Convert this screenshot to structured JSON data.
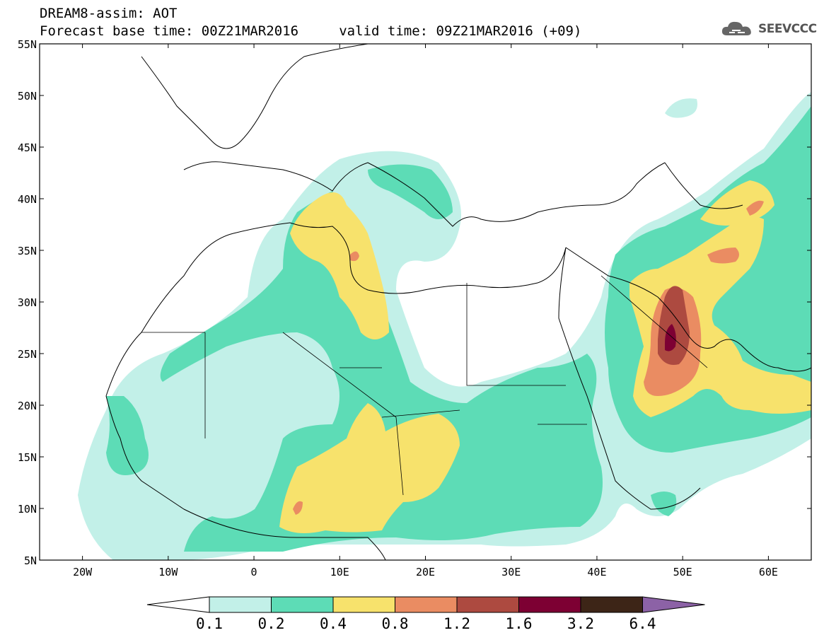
{
  "header": {
    "title_line1": "DREAM8-assim: AOT",
    "title_line2": "Forecast base time: 00Z21MAR2016     valid time: 09Z21MAR2016 (+09)",
    "logo_text": "SEEVCCC"
  },
  "map": {
    "lat_labels": [
      "55N",
      "50N",
      "45N",
      "40N",
      "35N",
      "30N",
      "25N",
      "20N",
      "15N",
      "10N",
      "5N"
    ],
    "lon_labels": [
      "20W",
      "10W",
      "0",
      "10E",
      "20E",
      "30E",
      "40E",
      "50E",
      "60E"
    ],
    "extent": {
      "lon_min": -25,
      "lon_max": 65,
      "lat_min": 5,
      "lat_max": 55
    }
  },
  "colorbar": {
    "ticks": [
      "0.1",
      "0.2",
      "0.4",
      "0.8",
      "1.2",
      "1.6",
      "3.2",
      "6.4"
    ],
    "colors": [
      "#ffffff",
      "#c2f0e8",
      "#5ddcb6",
      "#f7e26c",
      "#ea8c62",
      "#ad4a40",
      "#7d0033",
      "#3d2517",
      "#8c62a6"
    ]
  },
  "palette": {
    "c1": "#c2f0e8",
    "c2": "#5ddcb6",
    "c3": "#f7e26c",
    "c4": "#ea8c62",
    "c5": "#ad4a40",
    "c6": "#7d0033"
  }
}
